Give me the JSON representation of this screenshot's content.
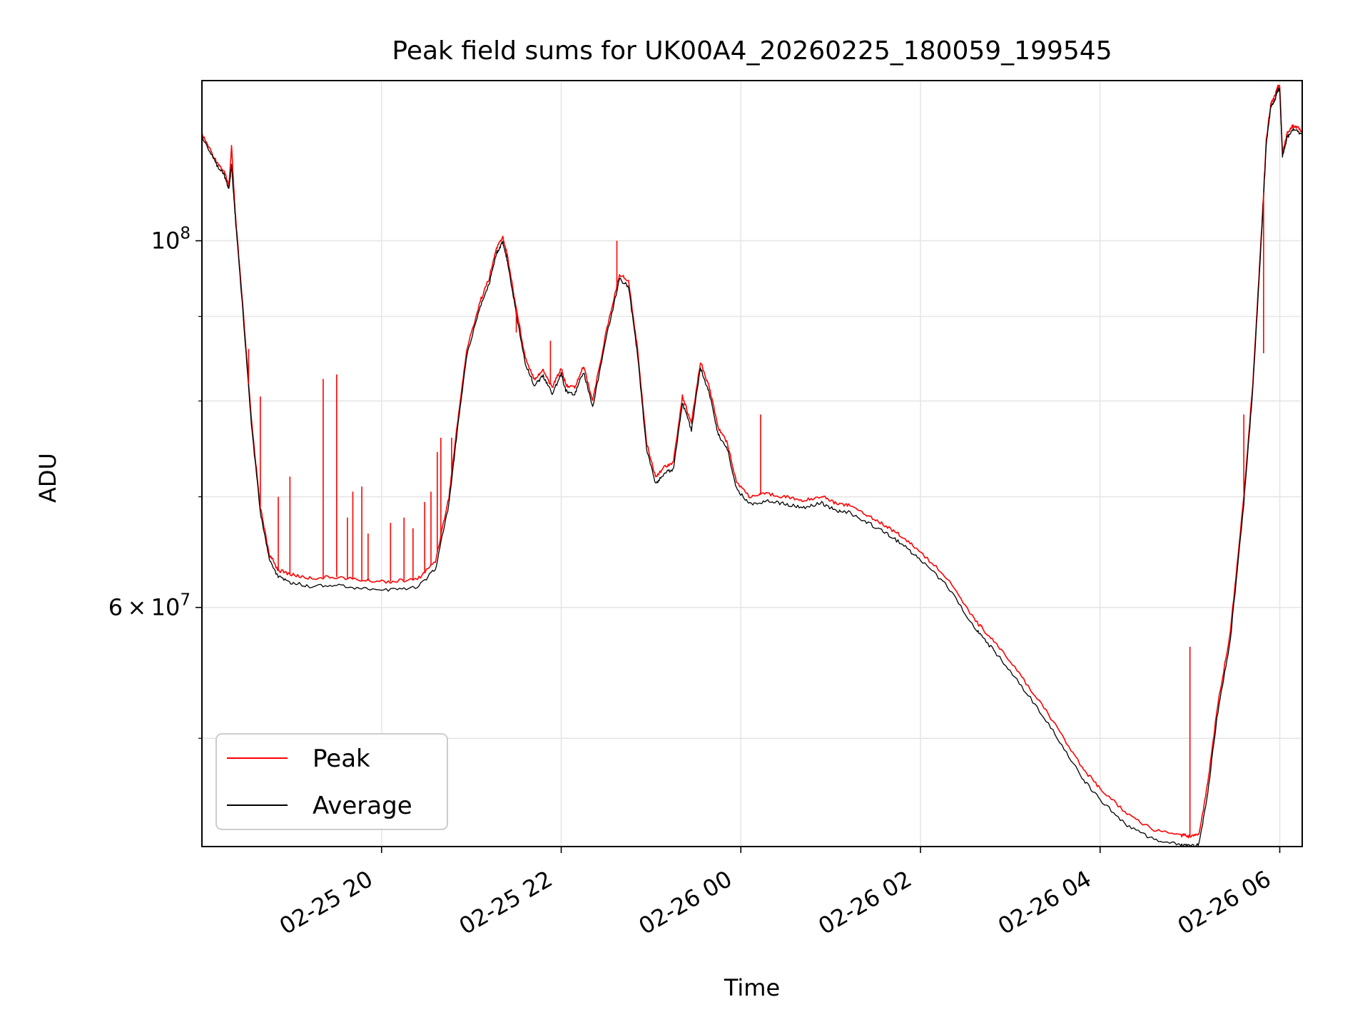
{
  "chart_data": {
    "type": "line",
    "title": "Peak field sums for UK00A4_20260225_180059_199545",
    "xlabel": "Time",
    "ylabel": "ADU",
    "yscale": "log",
    "xlim": [
      18.0,
      30.25
    ],
    "ylim": [
      43000000,
      125000000
    ],
    "grid": true,
    "legend_position": "lower-left",
    "x_ticks": [
      {
        "value": 20,
        "label": "02-25 20"
      },
      {
        "value": 22,
        "label": "02-25 22"
      },
      {
        "value": 24,
        "label": "02-26 00"
      },
      {
        "value": 26,
        "label": "02-26 02"
      },
      {
        "value": 28,
        "label": "02-26 04"
      },
      {
        "value": 30,
        "label": "02-26 06"
      }
    ],
    "y_major_ticks": [
      {
        "value": 100000000,
        "base": "10",
        "exp": "8",
        "mantissa": ""
      },
      {
        "value": 60000000,
        "base": "10",
        "exp": "7",
        "mantissa": "6 × 10"
      }
    ],
    "y_minor_ticks": [
      50000000,
      70000000,
      80000000,
      90000000
    ],
    "series": [
      {
        "name": "Peak",
        "color": "#ff0000",
        "x": [
          18.0,
          18.15,
          18.25,
          18.3,
          18.33,
          18.37,
          18.45,
          18.55,
          18.65,
          18.75,
          18.85,
          19.0,
          19.2,
          19.5,
          19.8,
          20.1,
          20.4,
          20.6,
          20.75,
          20.85,
          20.95,
          21.1,
          21.2,
          21.28,
          21.35,
          21.4,
          21.5,
          21.6,
          21.7,
          21.8,
          21.9,
          22.0,
          22.05,
          22.15,
          22.25,
          22.35,
          22.5,
          22.65,
          22.75,
          22.85,
          22.95,
          23.05,
          23.15,
          23.25,
          23.35,
          23.45,
          23.55,
          23.65,
          23.75,
          23.85,
          23.95,
          24.1,
          24.3,
          24.5,
          24.7,
          24.9,
          25.05,
          25.2,
          25.4,
          25.6,
          25.8,
          26.0,
          26.3,
          26.6,
          26.7,
          26.9,
          27.2,
          27.5,
          27.8,
          28.0,
          28.3,
          28.6,
          28.9,
          29.0,
          29.1,
          29.2,
          29.3,
          29.45,
          29.6,
          29.7,
          29.8,
          29.85,
          29.9,
          29.95,
          29.98,
          30.0,
          30.03,
          30.08,
          30.15,
          30.25
        ],
        "values": [
          116000000,
          112000000,
          110000000,
          108000000,
          114000000,
          104000000,
          92000000,
          78000000,
          69000000,
          64600000,
          63200000,
          62800000,
          62500000,
          62600000,
          62300000,
          62200000,
          62400000,
          64000000,
          70000000,
          78000000,
          86000000,
          92000000,
          95000000,
          99000000,
          100500000,
          98000000,
          91000000,
          85000000,
          82500000,
          83500000,
          81500000,
          83800000,
          81800000,
          81500000,
          84000000,
          80000000,
          88000000,
          95500000,
          94500000,
          86000000,
          75500000,
          72000000,
          73000000,
          73500000,
          80500000,
          77500000,
          84500000,
          81500000,
          77000000,
          75500000,
          71500000,
          70000000,
          70300000,
          70000000,
          69600000,
          70100000,
          69400000,
          69200000,
          68300000,
          67300000,
          66200000,
          64800000,
          62500000,
          59000000,
          58200000,
          56500000,
          53800000,
          51000000,
          48000000,
          46600000,
          45000000,
          44000000,
          43700000,
          43600000,
          43700000,
          47000000,
          52000000,
          58000000,
          70000000,
          82000000,
          102000000,
          115000000,
          121000000,
          122500000,
          124000000,
          124000000,
          113000000,
          116000000,
          117500000,
          116500000
        ]
      },
      {
        "name": "Average",
        "color": "#000000",
        "x": [
          18.0,
          18.15,
          18.25,
          18.3,
          18.33,
          18.37,
          18.45,
          18.55,
          18.65,
          18.75,
          18.85,
          19.0,
          19.2,
          19.5,
          19.8,
          20.1,
          20.4,
          20.6,
          20.75,
          20.85,
          20.95,
          21.1,
          21.2,
          21.28,
          21.35,
          21.4,
          21.5,
          21.6,
          21.7,
          21.8,
          21.9,
          22.0,
          22.05,
          22.15,
          22.25,
          22.35,
          22.5,
          22.65,
          22.75,
          22.85,
          22.95,
          23.05,
          23.15,
          23.25,
          23.35,
          23.45,
          23.55,
          23.65,
          23.75,
          23.85,
          23.95,
          24.1,
          24.3,
          24.5,
          24.7,
          24.9,
          25.05,
          25.2,
          25.4,
          25.6,
          25.8,
          26.0,
          26.3,
          26.6,
          26.7,
          26.9,
          27.2,
          27.5,
          27.8,
          28.0,
          28.3,
          28.6,
          28.9,
          29.0,
          29.1,
          29.2,
          29.3,
          29.45,
          29.6,
          29.7,
          29.8,
          29.85,
          29.9,
          29.95,
          29.98,
          30.0,
          30.03,
          30.08,
          30.15,
          30.25
        ],
        "values": [
          115500000,
          111500000,
          109500000,
          107500000,
          111000000,
          103500000,
          91500000,
          77500000,
          68500000,
          64100000,
          62600000,
          62100000,
          61800000,
          61900000,
          61600000,
          61500000,
          61700000,
          63300000,
          69300000,
          77300000,
          85300000,
          91300000,
          94300000,
          98300000,
          99800000,
          97300000,
          90300000,
          84300000,
          81800000,
          82800000,
          80800000,
          83100000,
          81100000,
          80800000,
          83300000,
          79300000,
          87300000,
          94800000,
          93800000,
          85300000,
          74800000,
          71300000,
          72300000,
          72800000,
          79800000,
          76800000,
          83800000,
          80800000,
          76300000,
          74800000,
          70800000,
          69300000,
          69600000,
          69300000,
          68900000,
          69400000,
          68700000,
          68500000,
          67600000,
          66600000,
          65500000,
          64100000,
          61800000,
          58300000,
          57500000,
          55800000,
          53100000,
          50300000,
          47300000,
          45900000,
          44300000,
          43400000,
          43100000,
          43000000,
          43100000,
          46400000,
          51400000,
          57400000,
          69400000,
          81400000,
          101400000,
          114400000,
          120400000,
          121900000,
          123400000,
          123400000,
          112400000,
          115400000,
          116900000,
          115900000
        ]
      }
    ],
    "spikes": {
      "x": [
        18.33,
        18.52,
        18.65,
        18.85,
        18.98,
        19.35,
        19.5,
        19.62,
        19.68,
        19.78,
        19.85,
        20.1,
        20.25,
        20.35,
        20.48,
        20.55,
        20.62,
        20.66,
        20.78,
        21.5,
        21.88,
        22.62,
        24.22,
        29.0,
        29.6,
        29.82
      ],
      "values": [
        114000000,
        86000000,
        80500000,
        70000000,
        72000000,
        82500000,
        83000000,
        68000000,
        70500000,
        71000000,
        66500000,
        67500000,
        68000000,
        67000000,
        69500000,
        70500000,
        74500000,
        76000000,
        76000000,
        88000000,
        87000000,
        100000000,
        78500000,
        56800000,
        78500000,
        85500000
      ]
    }
  }
}
